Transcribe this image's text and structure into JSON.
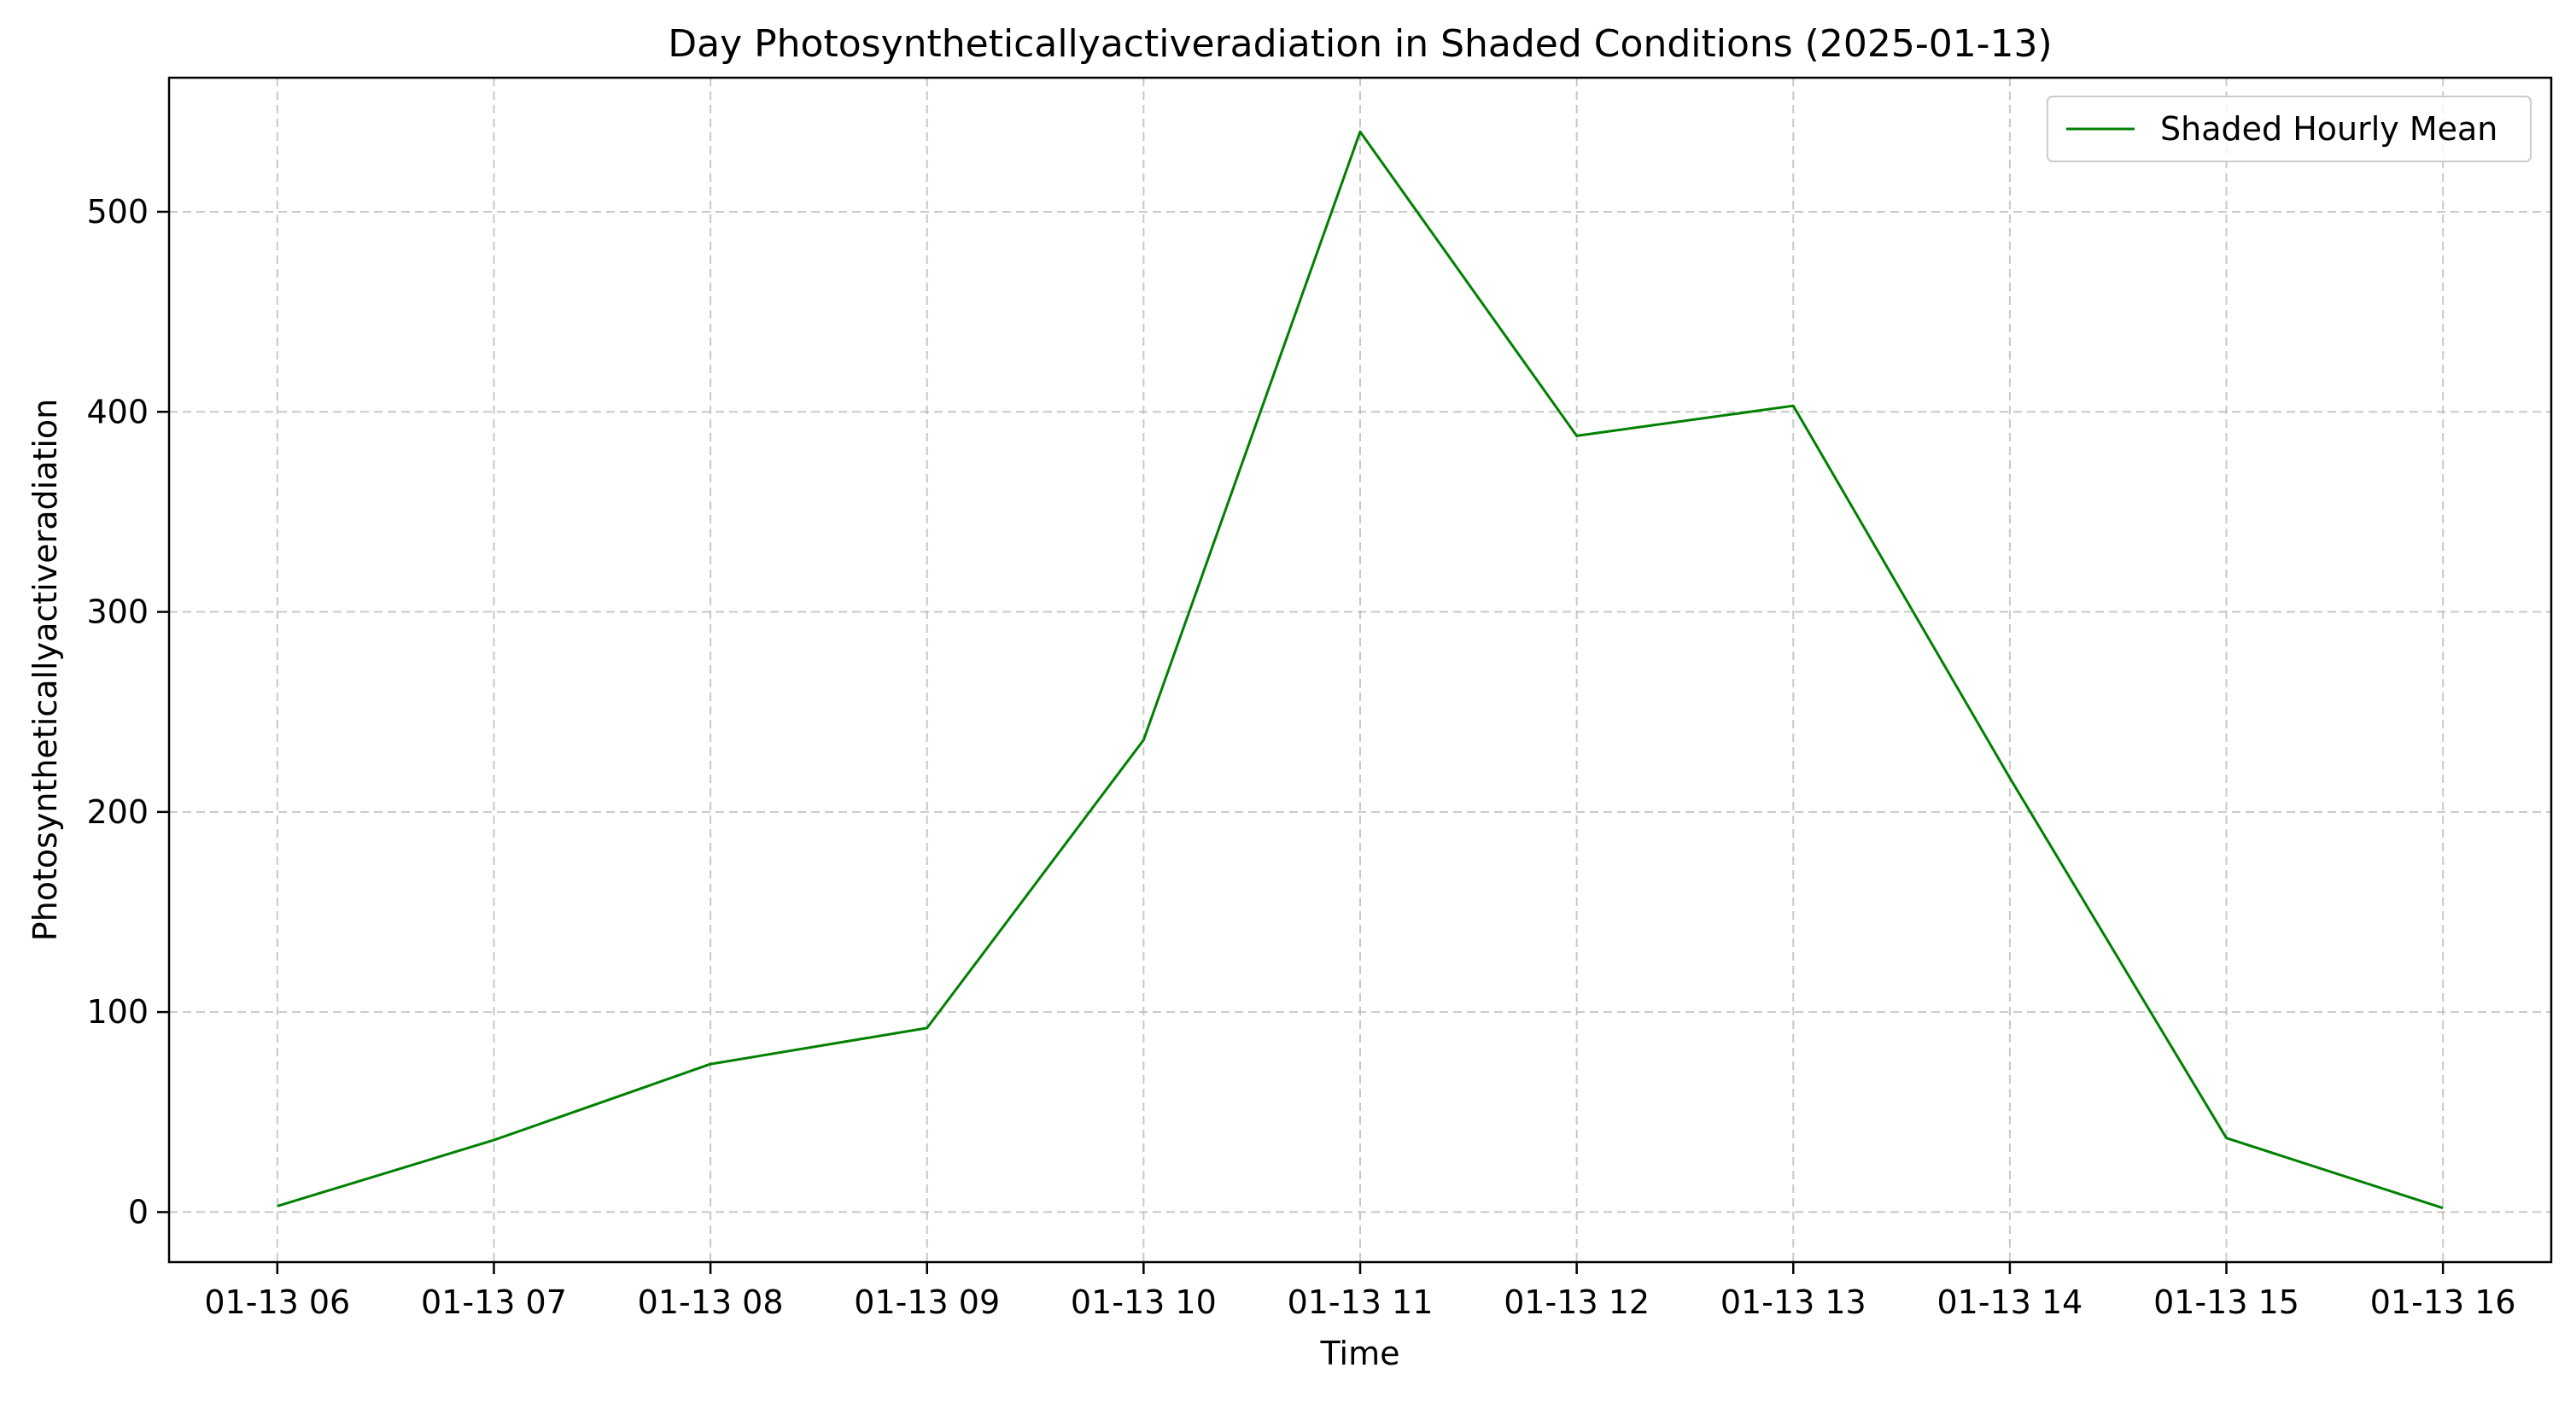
{
  "chart_data": {
    "type": "line",
    "title": "Day Photosyntheticallyactiveradiation in Shaded Conditions (2025-01-13)",
    "xlabel": "Time",
    "ylabel": "Photosyntheticallyactiveradiation",
    "x": [
      "01-13 06",
      "01-13 07",
      "01-13 08",
      "01-13 09",
      "01-13 10",
      "01-13 11",
      "01-13 12",
      "01-13 13",
      "01-13 14",
      "01-13 15",
      "01-13 16"
    ],
    "series": [
      {
        "name": "Shaded Hourly Mean",
        "color": "#008000",
        "values": [
          3,
          36,
          74,
          92,
          236,
          540,
          388,
          403,
          217,
          37,
          2
        ]
      }
    ],
    "xlim": [
      "01-13 05:30",
      "01-13 16:30"
    ],
    "ylim": [
      -25,
      567
    ],
    "yticks": [
      0,
      100,
      200,
      300,
      400,
      500
    ],
    "grid": true,
    "grid_style": "dashed",
    "legend_position": "top-right"
  }
}
